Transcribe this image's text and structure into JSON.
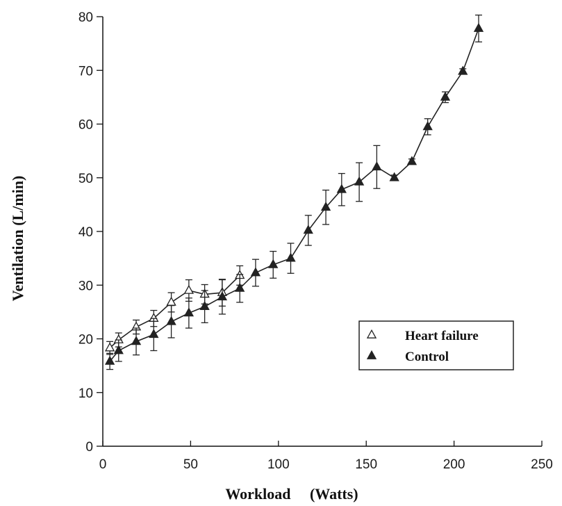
{
  "chart_data": {
    "type": "line",
    "xlabel": "Workload     (Watts)",
    "ylabel": "Ventilation (L/min)",
    "xlim": [
      0,
      250
    ],
    "ylim": [
      0,
      80
    ],
    "xticks": [
      0,
      50,
      100,
      150,
      200,
      250
    ],
    "yticks": [
      0,
      10,
      20,
      30,
      40,
      50,
      60,
      70,
      80
    ],
    "grid": false,
    "legend_position": "lower-right",
    "series": [
      {
        "name": "Heart failure",
        "marker": "open-triangle",
        "points": [
          {
            "x": 4,
            "y": 18.3,
            "err": 1.2
          },
          {
            "x": 9,
            "y": 19.8,
            "err": 1.3
          },
          {
            "x": 19,
            "y": 22.2,
            "err": 1.3
          },
          {
            "x": 29,
            "y": 23.8,
            "err": 1.5
          },
          {
            "x": 39,
            "y": 26.8,
            "err": 1.8
          },
          {
            "x": 49,
            "y": 29.0,
            "err": 2.0
          },
          {
            "x": 58,
            "y": 28.3,
            "err": 1.8
          },
          {
            "x": 68,
            "y": 28.6,
            "err": 2.5
          },
          {
            "x": 78,
            "y": 31.8,
            "err": 1.8
          }
        ]
      },
      {
        "name": "Control",
        "marker": "filled-triangle",
        "points": [
          {
            "x": 4,
            "y": 15.8,
            "err": 1.5
          },
          {
            "x": 9,
            "y": 17.8,
            "err": 2.0
          },
          {
            "x": 19,
            "y": 19.5,
            "err": 2.5
          },
          {
            "x": 29,
            "y": 20.8,
            "err": 3.0
          },
          {
            "x": 39,
            "y": 23.2,
            "err": 3.0
          },
          {
            "x": 49,
            "y": 24.8,
            "err": 2.8
          },
          {
            "x": 58,
            "y": 26.0,
            "err": 3.0
          },
          {
            "x": 68,
            "y": 27.8,
            "err": 3.2
          },
          {
            "x": 78,
            "y": 29.4,
            "err": 2.6
          },
          {
            "x": 87,
            "y": 32.3,
            "err": 2.5
          },
          {
            "x": 97,
            "y": 33.8,
            "err": 2.5
          },
          {
            "x": 107,
            "y": 35.0,
            "err": 2.8
          },
          {
            "x": 117,
            "y": 40.2,
            "err": 2.8
          },
          {
            "x": 127,
            "y": 44.5,
            "err": 3.2
          },
          {
            "x": 136,
            "y": 47.8,
            "err": 3.0
          },
          {
            "x": 146,
            "y": 49.2,
            "err": 3.6
          },
          {
            "x": 156,
            "y": 52.0,
            "err": 4.0
          },
          {
            "x": 166,
            "y": 50.0,
            "err": 0.5
          },
          {
            "x": 176,
            "y": 53.0,
            "err": 0.5
          },
          {
            "x": 185,
            "y": 59.5,
            "err": 1.5
          },
          {
            "x": 195,
            "y": 65.0,
            "err": 1.0
          },
          {
            "x": 205,
            "y": 69.8,
            "err": 0.5
          },
          {
            "x": 214,
            "y": 77.8,
            "err": 2.5
          }
        ]
      }
    ]
  }
}
